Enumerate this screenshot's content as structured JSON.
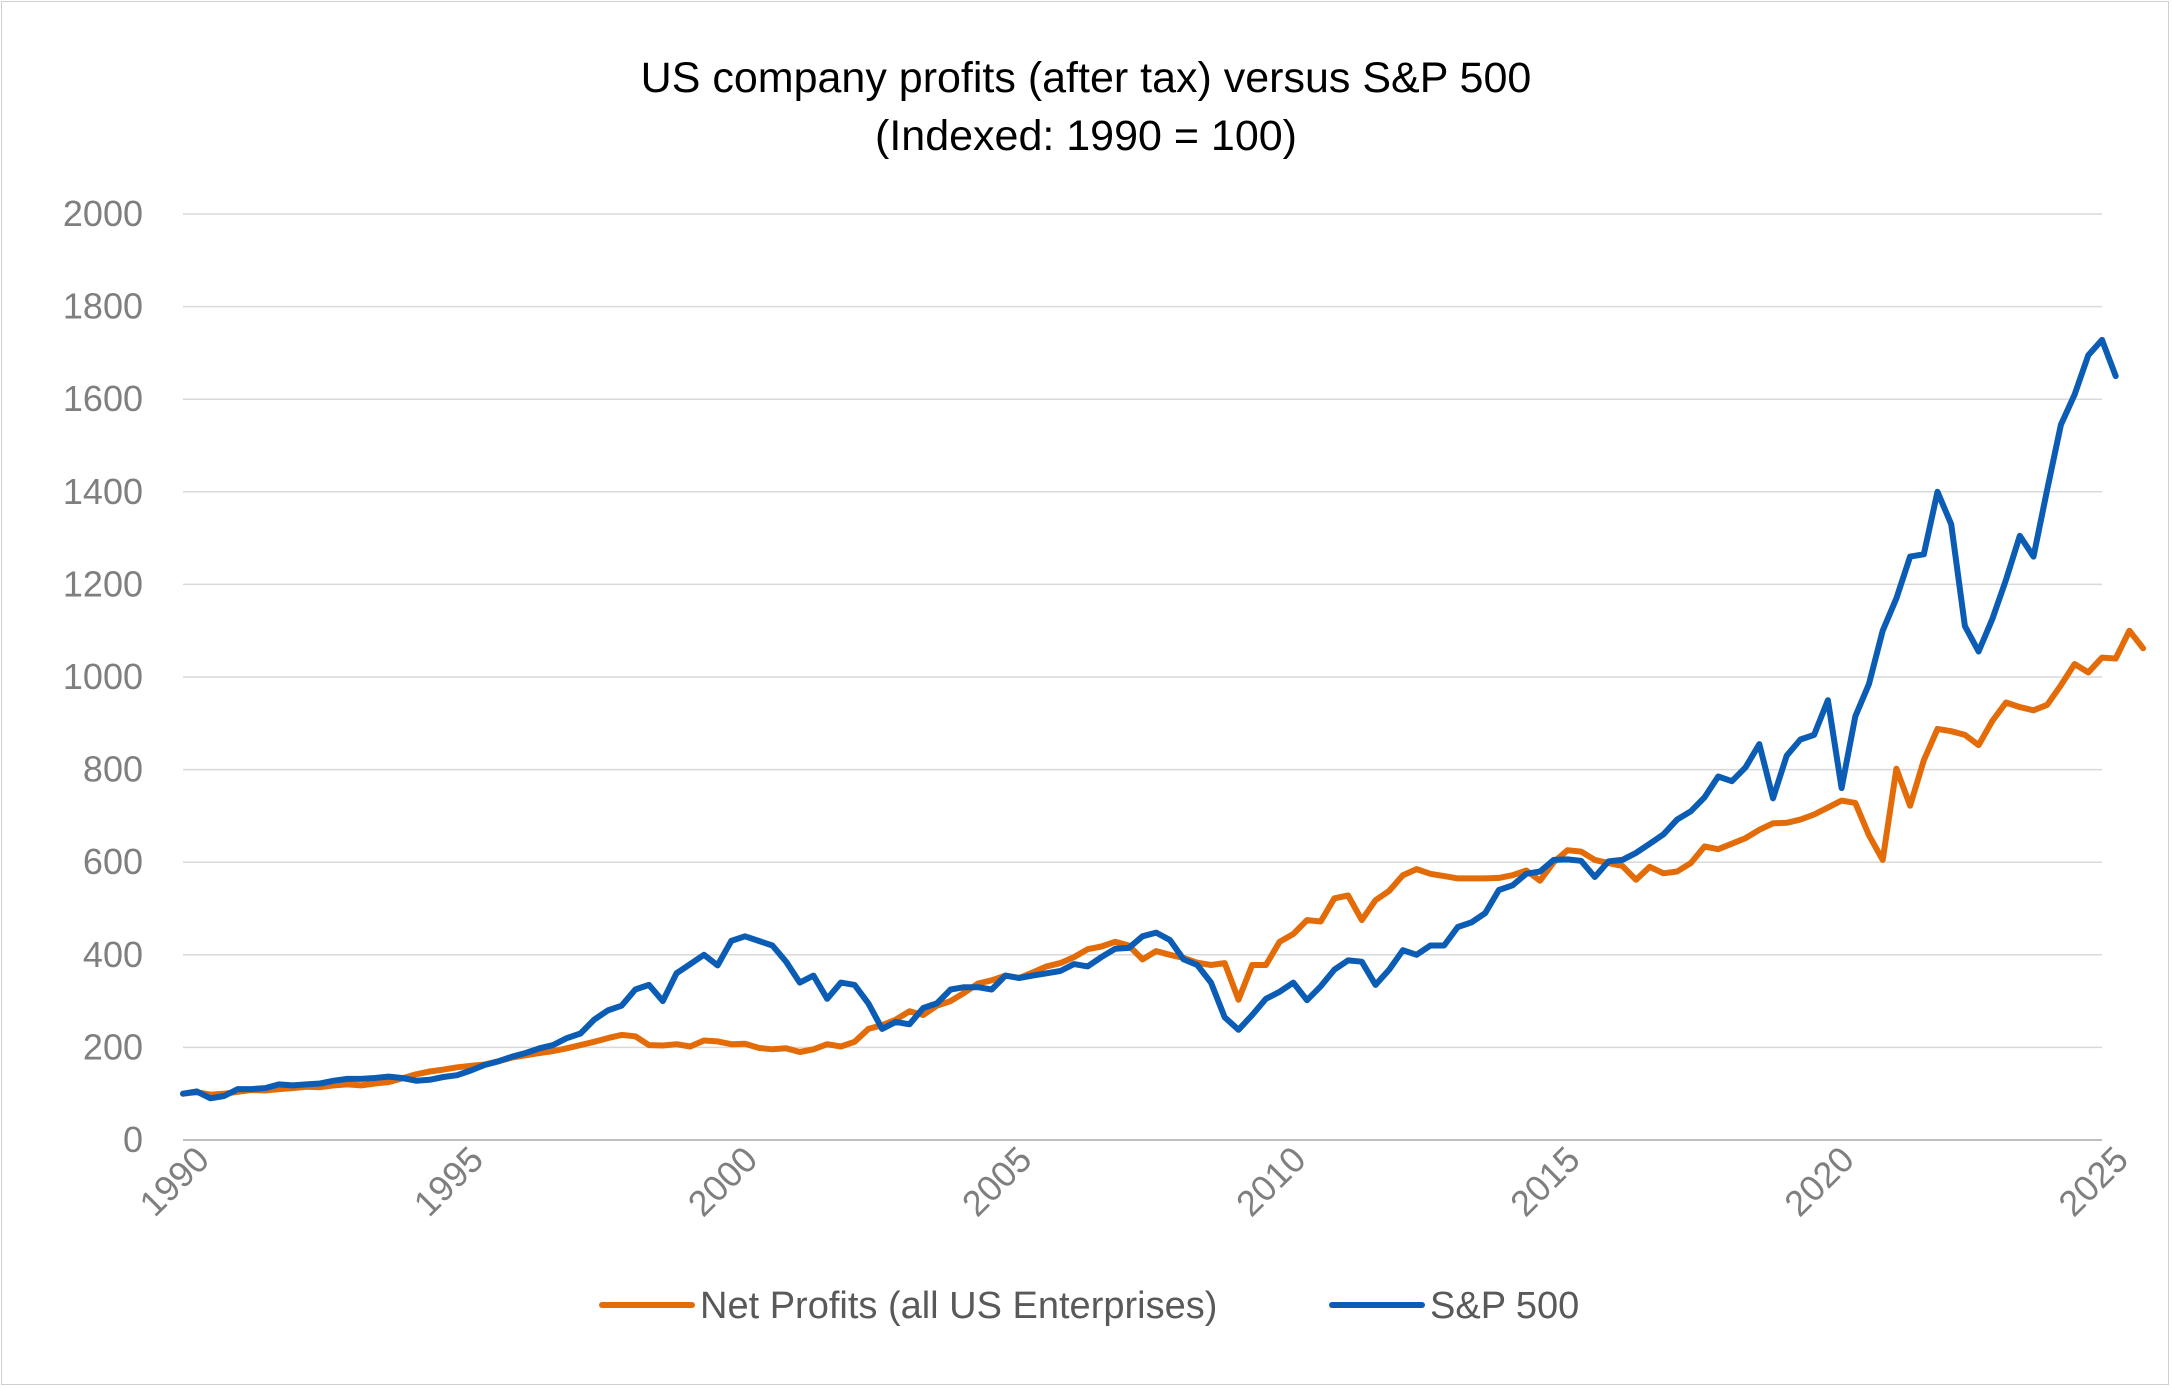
{
  "chart_data": {
    "type": "line",
    "title": "US company profits (after tax) versus S&P 500",
    "subtitle": "(Indexed: 1990 = 100)",
    "xlabel": "",
    "ylabel": "",
    "xlim": [
      1990,
      2025
    ],
    "ylim": [
      0,
      2000
    ],
    "y_ticks": [
      "0",
      "200",
      "400",
      "600",
      "800",
      "1000",
      "1200",
      "1400",
      "1600",
      "1800",
      "2000"
    ],
    "x_ticks": [
      "1990",
      "1995",
      "2000",
      "2005",
      "2010",
      "2015",
      "2020",
      "2025"
    ],
    "grid": true,
    "legend_position": "bottom",
    "series": [
      {
        "name": "Net Profits (all US Enterprises)",
        "color": "#E36C09",
        "points": [
          [
            1990,
            100
          ],
          [
            1990.25,
            103
          ],
          [
            1990.5,
            98
          ],
          [
            1990.75,
            100
          ],
          [
            1991,
            104
          ],
          [
            1991.25,
            108
          ],
          [
            1991.5,
            107
          ],
          [
            1991.75,
            110
          ],
          [
            1992,
            112
          ],
          [
            1992.25,
            115
          ],
          [
            1992.5,
            114
          ],
          [
            1992.75,
            118
          ],
          [
            1993,
            120
          ],
          [
            1993.25,
            118
          ],
          [
            1993.5,
            122
          ],
          [
            1993.75,
            125
          ],
          [
            1994,
            133
          ],
          [
            1994.25,
            142
          ],
          [
            1994.5,
            148
          ],
          [
            1994.75,
            152
          ],
          [
            1995,
            157
          ],
          [
            1995.25,
            160
          ],
          [
            1995.5,
            163
          ],
          [
            1995.75,
            170
          ],
          [
            1996,
            178
          ],
          [
            1996.25,
            183
          ],
          [
            1996.5,
            188
          ],
          [
            1996.75,
            192
          ],
          [
            1997,
            198
          ],
          [
            1997.25,
            205
          ],
          [
            1997.5,
            212
          ],
          [
            1997.75,
            220
          ],
          [
            1998,
            227
          ],
          [
            1998.25,
            224
          ],
          [
            1998.5,
            205
          ],
          [
            1998.75,
            204
          ],
          [
            1999,
            207
          ],
          [
            1999.25,
            202
          ],
          [
            1999.5,
            215
          ],
          [
            1999.75,
            213
          ],
          [
            2000,
            207
          ],
          [
            2000.25,
            208
          ],
          [
            2000.5,
            199
          ],
          [
            2000.75,
            196
          ],
          [
            2001,
            198
          ],
          [
            2001.25,
            190
          ],
          [
            2001.5,
            196
          ],
          [
            2001.75,
            207
          ],
          [
            2002,
            202
          ],
          [
            2002.25,
            212
          ],
          [
            2002.5,
            240
          ],
          [
            2002.75,
            248
          ],
          [
            2003,
            260
          ],
          [
            2003.25,
            278
          ],
          [
            2003.5,
            270
          ],
          [
            2003.75,
            290
          ],
          [
            2004,
            300
          ],
          [
            2004.25,
            318
          ],
          [
            2004.5,
            338
          ],
          [
            2004.75,
            345
          ],
          [
            2005,
            355
          ],
          [
            2005.25,
            350
          ],
          [
            2005.5,
            362
          ],
          [
            2005.75,
            375
          ],
          [
            2006,
            382
          ],
          [
            2006.25,
            395
          ],
          [
            2006.5,
            412
          ],
          [
            2006.75,
            418
          ],
          [
            2007,
            428
          ],
          [
            2007.25,
            420
          ],
          [
            2007.5,
            390
          ],
          [
            2007.75,
            408
          ],
          [
            2008,
            400
          ],
          [
            2008.25,
            393
          ],
          [
            2008.5,
            383
          ],
          [
            2008.75,
            378
          ],
          [
            2009,
            382
          ],
          [
            2009.25,
            303
          ],
          [
            2009.5,
            378
          ],
          [
            2009.75,
            378
          ],
          [
            2010,
            428
          ],
          [
            2010.25,
            445
          ],
          [
            2010.5,
            475
          ],
          [
            2010.75,
            472
          ],
          [
            2011,
            522
          ],
          [
            2011.25,
            528
          ],
          [
            2011.5,
            475
          ],
          [
            2011.75,
            518
          ],
          [
            2012,
            538
          ],
          [
            2012.25,
            572
          ],
          [
            2012.5,
            585
          ],
          [
            2012.75,
            575
          ],
          [
            2013,
            570
          ],
          [
            2013.25,
            565
          ],
          [
            2013.5,
            565
          ],
          [
            2013.75,
            565
          ],
          [
            2014,
            566
          ],
          [
            2014.25,
            572
          ],
          [
            2014.5,
            582
          ],
          [
            2014.75,
            560
          ],
          [
            2015,
            600
          ],
          [
            2015.25,
            626
          ],
          [
            2015.5,
            623
          ],
          [
            2015.75,
            605
          ],
          [
            2016,
            598
          ],
          [
            2016.25,
            592
          ],
          [
            2016.5,
            562
          ],
          [
            2016.75,
            590
          ],
          [
            2017,
            576
          ],
          [
            2017.25,
            580
          ],
          [
            2017.5,
            598
          ],
          [
            2017.75,
            634
          ],
          [
            2018,
            628
          ],
          [
            2018.25,
            640
          ],
          [
            2018.5,
            652
          ],
          [
            2018.75,
            670
          ],
          [
            2019,
            684
          ],
          [
            2019.25,
            685
          ],
          [
            2019.5,
            692
          ],
          [
            2019.75,
            703
          ],
          [
            2020,
            718
          ],
          [
            2020.25,
            733
          ],
          [
            2020.5,
            728
          ],
          [
            2020.75,
            658
          ],
          [
            2021,
            605
          ],
          [
            2021.25,
            802
          ],
          [
            2021.5,
            722
          ],
          [
            2021.75,
            820
          ],
          [
            2022,
            888
          ],
          [
            2022.25,
            883
          ],
          [
            2022.5,
            875
          ],
          [
            2022.75,
            853
          ],
          [
            2023,
            905
          ],
          [
            2023.25,
            945
          ],
          [
            2023.5,
            935
          ],
          [
            2023.75,
            928
          ],
          [
            2024,
            940
          ],
          [
            2024.25,
            982
          ],
          [
            2024.5,
            1028
          ],
          [
            2024.75,
            1010
          ],
          [
            2025,
            1042
          ],
          [
            2025.25,
            1040
          ],
          [
            2025.5,
            1100
          ],
          [
            2025.75,
            1062
          ]
        ]
      },
      {
        "name": "S&P 500",
        "color": "#0A5CB5",
        "points": [
          [
            1990,
            100
          ],
          [
            1990.25,
            105
          ],
          [
            1990.5,
            90
          ],
          [
            1990.75,
            95
          ],
          [
            1991,
            110
          ],
          [
            1991.25,
            110
          ],
          [
            1991.5,
            112
          ],
          [
            1991.75,
            120
          ],
          [
            1992,
            118
          ],
          [
            1992.25,
            120
          ],
          [
            1992.5,
            122
          ],
          [
            1992.75,
            128
          ],
          [
            1993,
            132
          ],
          [
            1993.25,
            132
          ],
          [
            1993.5,
            134
          ],
          [
            1993.75,
            137
          ],
          [
            1994,
            134
          ],
          [
            1994.25,
            128
          ],
          [
            1994.5,
            130
          ],
          [
            1994.75,
            136
          ],
          [
            1995,
            140
          ],
          [
            1995.25,
            150
          ],
          [
            1995.5,
            162
          ],
          [
            1995.75,
            170
          ],
          [
            1996,
            180
          ],
          [
            1996.25,
            188
          ],
          [
            1996.5,
            198
          ],
          [
            1996.75,
            205
          ],
          [
            1997,
            220
          ],
          [
            1997.25,
            230
          ],
          [
            1997.5,
            260
          ],
          [
            1997.75,
            280
          ],
          [
            1998,
            290
          ],
          [
            1998.25,
            325
          ],
          [
            1998.5,
            335
          ],
          [
            1998.75,
            300
          ],
          [
            1999,
            360
          ],
          [
            1999.25,
            380
          ],
          [
            1999.5,
            400
          ],
          [
            1999.75,
            377
          ],
          [
            2000,
            430
          ],
          [
            2000.25,
            440
          ],
          [
            2000.5,
            430
          ],
          [
            2000.75,
            420
          ],
          [
            2001,
            385
          ],
          [
            2001.25,
            340
          ],
          [
            2001.5,
            355
          ],
          [
            2001.75,
            305
          ],
          [
            2002,
            340
          ],
          [
            2002.25,
            335
          ],
          [
            2002.5,
            295
          ],
          [
            2002.75,
            240
          ],
          [
            2003,
            255
          ],
          [
            2003.25,
            250
          ],
          [
            2003.5,
            285
          ],
          [
            2003.75,
            295
          ],
          [
            2004,
            325
          ],
          [
            2004.25,
            330
          ],
          [
            2004.5,
            330
          ],
          [
            2004.75,
            325
          ],
          [
            2005,
            355
          ],
          [
            2005.25,
            350
          ],
          [
            2005.5,
            355
          ],
          [
            2005.75,
            360
          ],
          [
            2006,
            365
          ],
          [
            2006.25,
            380
          ],
          [
            2006.5,
            375
          ],
          [
            2006.75,
            395
          ],
          [
            2007,
            413
          ],
          [
            2007.25,
            415
          ],
          [
            2007.5,
            440
          ],
          [
            2007.75,
            448
          ],
          [
            2008,
            432
          ],
          [
            2008.25,
            390
          ],
          [
            2008.5,
            378
          ],
          [
            2008.75,
            340
          ],
          [
            2009,
            265
          ],
          [
            2009.25,
            238
          ],
          [
            2009.5,
            270
          ],
          [
            2009.75,
            305
          ],
          [
            2010,
            320
          ],
          [
            2010.25,
            340
          ],
          [
            2010.5,
            302
          ],
          [
            2010.75,
            332
          ],
          [
            2011,
            368
          ],
          [
            2011.25,
            388
          ],
          [
            2011.5,
            385
          ],
          [
            2011.75,
            335
          ],
          [
            2012,
            368
          ],
          [
            2012.25,
            410
          ],
          [
            2012.5,
            400
          ],
          [
            2012.75,
            420
          ],
          [
            2013,
            420
          ],
          [
            2013.25,
            460
          ],
          [
            2013.5,
            470
          ],
          [
            2013.75,
            490
          ],
          [
            2014,
            540
          ],
          [
            2014.25,
            550
          ],
          [
            2014.5,
            575
          ],
          [
            2014.75,
            580
          ],
          [
            2015,
            605
          ],
          [
            2015.25,
            606
          ],
          [
            2015.5,
            603
          ],
          [
            2015.75,
            568
          ],
          [
            2016,
            602
          ],
          [
            2016.25,
            605
          ],
          [
            2016.5,
            620
          ],
          [
            2016.75,
            640
          ],
          [
            2017,
            660
          ],
          [
            2017.25,
            692
          ],
          [
            2017.5,
            710
          ],
          [
            2017.75,
            740
          ],
          [
            2018,
            785
          ],
          [
            2018.25,
            775
          ],
          [
            2018.5,
            805
          ],
          [
            2018.75,
            855
          ],
          [
            2019,
            738
          ],
          [
            2019.25,
            830
          ],
          [
            2019.5,
            865
          ],
          [
            2019.75,
            875
          ],
          [
            2020,
            950
          ],
          [
            2020.25,
            760
          ],
          [
            2020.5,
            915
          ],
          [
            2020.75,
            985
          ],
          [
            2021,
            1100
          ],
          [
            2021.25,
            1170
          ],
          [
            2021.5,
            1260
          ],
          [
            2021.75,
            1265
          ],
          [
            2022,
            1400
          ],
          [
            2022.25,
            1330
          ],
          [
            2022.5,
            1110
          ],
          [
            2022.75,
            1055
          ],
          [
            2023,
            1125
          ],
          [
            2023.25,
            1210
          ],
          [
            2023.5,
            1305
          ],
          [
            2023.75,
            1260
          ],
          [
            2024,
            1405
          ],
          [
            2024.25,
            1545
          ],
          [
            2024.5,
            1610
          ],
          [
            2024.75,
            1695
          ],
          [
            2025,
            1728
          ],
          [
            2025.25,
            1650
          ]
        ]
      }
    ]
  }
}
